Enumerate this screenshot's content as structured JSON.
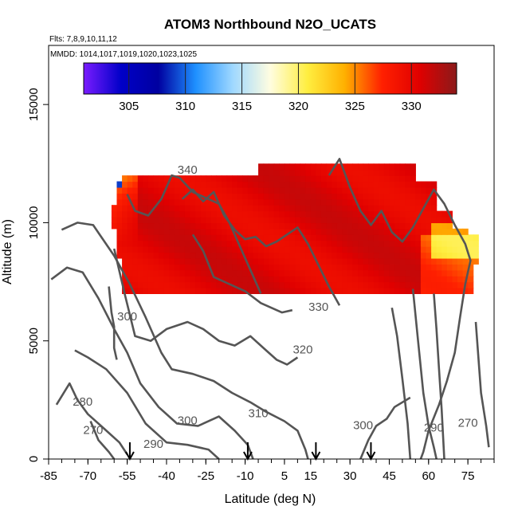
{
  "chart_data": {
    "type": "heatmap",
    "title": "ATOM3 Northbound N2O_UCATS",
    "subtitle_flights": "Flts: 7,8,9,10,11,12",
    "subtitle_dates": "MMDD: 1014,1017,1019,1020,1023,1025",
    "xlabel": "Latitude (deg N)",
    "ylabel": "Altitude (m)",
    "xlim": [
      -85,
      85
    ],
    "ylim": [
      0,
      17500
    ],
    "x_ticks": [
      -85,
      -70,
      -55,
      -40,
      -25,
      -10,
      5,
      15,
      30,
      45,
      60,
      75
    ],
    "y_ticks": [
      0,
      5000,
      10000,
      15000
    ],
    "colorbar": {
      "range": [
        301,
        334
      ],
      "ticks": [
        305,
        310,
        315,
        320,
        325,
        330
      ],
      "stops": [
        "#7a1cff",
        "#0000c8",
        "#0000a0",
        "#1e90ff",
        "#9fd8ff",
        "#fffde0",
        "#ffee40",
        "#ffb000",
        "#ff2000",
        "#e00000",
        "#8b1a1a"
      ]
    },
    "contours": [
      {
        "value": 270,
        "label": "270",
        "label_positions": [
          [
            -68,
            1200
          ],
          [
            75,
            1500
          ]
        ]
      },
      {
        "value": 280,
        "label": "280",
        "label_positions": [
          [
            -72,
            2400
          ]
        ]
      },
      {
        "value": 290,
        "label": "290",
        "label_positions": [
          [
            -45,
            600
          ],
          [
            62,
            1300
          ]
        ]
      },
      {
        "value": 300,
        "label": "300",
        "label_positions": [
          [
            -55,
            6000
          ],
          [
            -32,
            1600
          ],
          [
            35,
            1400
          ]
        ]
      },
      {
        "value": 310,
        "label": "310",
        "label_positions": [
          [
            -5,
            1900
          ]
        ]
      },
      {
        "value": 320,
        "label": "320",
        "label_positions": [
          [
            12,
            4600
          ]
        ]
      },
      {
        "value": 330,
        "label": "330",
        "label_positions": [
          [
            18,
            6400
          ]
        ]
      },
      {
        "value": 340,
        "label": "340",
        "label_positions": [
          [
            -32,
            12200
          ]
        ]
      }
    ],
    "flight_arrows_latitude": [
      -54,
      -9,
      17,
      38
    ],
    "data_region_altitude": [
      7000,
      12500
    ],
    "data_region_latitude": [
      -61,
      78
    ]
  }
}
